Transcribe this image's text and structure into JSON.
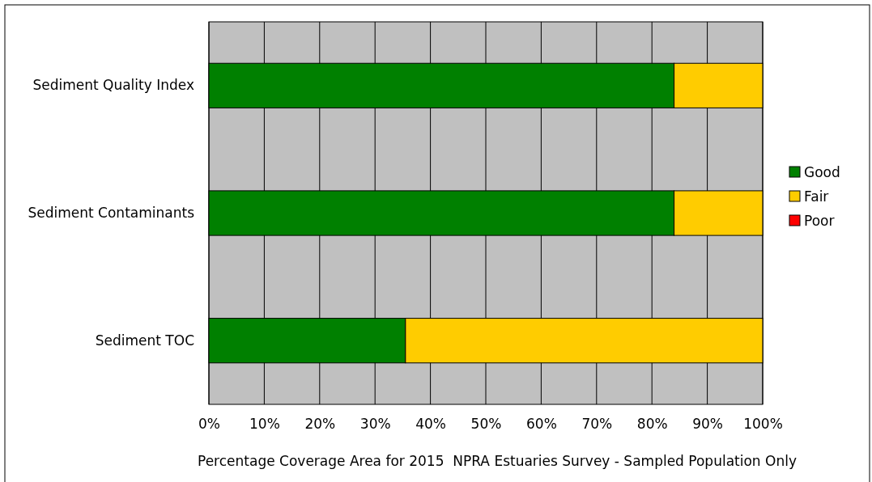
{
  "chart_data": {
    "type": "bar",
    "orientation": "horizontal",
    "stacked": true,
    "categories": [
      "Sediment Quality Index",
      "Sediment Contaminants",
      "Sediment TOC"
    ],
    "series": [
      {
        "name": "Good",
        "color": "#008000",
        "values": [
          84,
          84,
          35.5
        ]
      },
      {
        "name": "Fair",
        "color": "#ffcc00",
        "values": [
          16,
          16,
          64.5
        ]
      },
      {
        "name": "Poor",
        "color": "#ff0000",
        "values": [
          0,
          0,
          0
        ]
      }
    ],
    "xlim": [
      0,
      100
    ],
    "xticks": [
      {
        "value": 0,
        "label": "0%"
      },
      {
        "value": 10,
        "label": "10%"
      },
      {
        "value": 20,
        "label": "20%"
      },
      {
        "value": 30,
        "label": "30%"
      },
      {
        "value": 40,
        "label": "40%"
      },
      {
        "value": 50,
        "label": "50%"
      },
      {
        "value": 60,
        "label": "60%"
      },
      {
        "value": 70,
        "label": "70%"
      },
      {
        "value": 80,
        "label": "80%"
      },
      {
        "value": 90,
        "label": "90%"
      },
      {
        "value": 100,
        "label": "100%"
      }
    ],
    "xlabel": "Percentage Coverage Area for 2015  NPRA Estuaries Survey - Sampled Population Only",
    "grid": "x",
    "legend": "right"
  }
}
